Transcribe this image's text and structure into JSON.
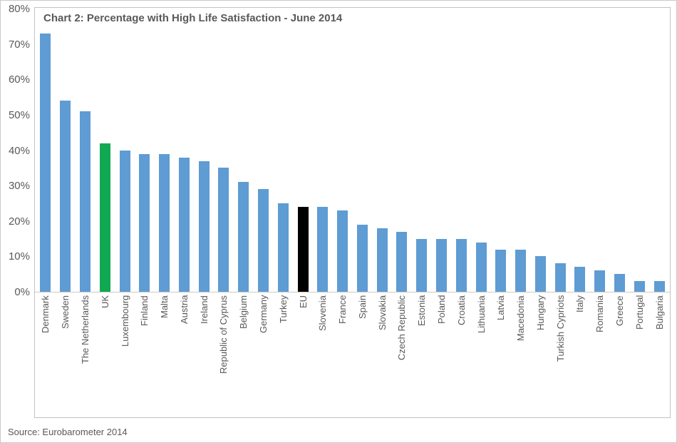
{
  "colors": {
    "bar_default": "#5E9CD3",
    "bar_uk_highlight": "#10A852",
    "bar_eu_highlight": "#000000",
    "text_gray": "#595959",
    "axis_line": "#CFC9C3",
    "frame_border": "#C3C3C3"
  },
  "chart_data": {
    "type": "bar",
    "title": "Chart 2: Percentage with High Life Satisfaction - June 2014",
    "source": "Source: Eurobarometer 2014",
    "xlabel": "",
    "ylabel": "",
    "ylim": [
      0,
      80
    ],
    "yticks": [
      "0%",
      "10%",
      "20%",
      "30%",
      "40%",
      "50%",
      "60%",
      "70%",
      "80%"
    ],
    "grid": false,
    "legend_position": "none",
    "x_tick_rotation": 90,
    "categories": [
      "Denmark",
      "Sweden",
      "The Netherlands",
      "UK",
      "Luxembourg",
      "Finland",
      "Malta",
      "Austria",
      "Ireland",
      "Republic of Cyprus",
      "Belgium",
      "Germany",
      "Turkey",
      "EU",
      "Slovenia",
      "France",
      "Spain",
      "Slovakia",
      "Czech Republic",
      "Estonia",
      "Poland",
      "Croatia",
      "Lithuania",
      "Latvia",
      "Macedonia",
      "Hungary",
      "Turkish Cypriots",
      "Italy",
      "Romania",
      "Greece",
      "Portugal",
      "Bulgaria"
    ],
    "values": [
      73,
      54,
      51,
      42,
      40,
      39,
      39,
      38,
      37,
      35,
      31,
      29,
      25,
      24,
      24,
      23,
      19,
      18,
      17,
      15,
      15,
      15,
      14,
      12,
      12,
      10,
      8,
      7,
      6,
      5,
      3,
      3
    ],
    "highlighted_bars": {
      "UK": "#10A852",
      "EU": "#000000"
    }
  }
}
